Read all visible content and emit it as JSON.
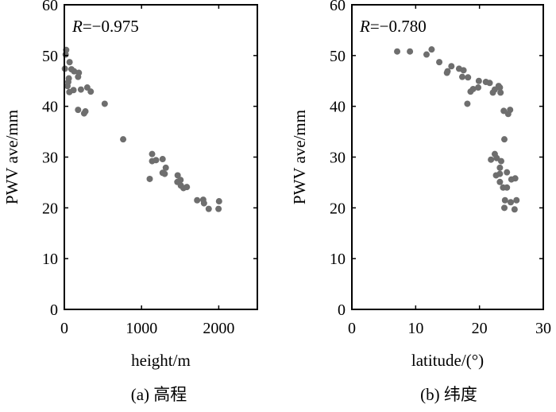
{
  "chart_data": [
    {
      "type": "scatter",
      "caption": "(a) 高程",
      "annotation_prefix": "R",
      "annotation_value": "=−0.975",
      "xlabel": "height/m",
      "ylabel": "PWV ave/mm",
      "xlim": [
        0,
        2500
      ],
      "ylim": [
        0,
        60
      ],
      "xticks": [
        0,
        1000,
        2000
      ],
      "xtick_labels": [
        "0",
        "1000",
        "2000"
      ],
      "yticks": [
        0,
        10,
        20,
        30,
        40,
        50,
        60
      ],
      "ytick_labels": [
        "0",
        "10",
        "20",
        "30",
        "40",
        "50",
        "60"
      ],
      "grid": false,
      "marker_color": "#6e6e6e",
      "points": [
        [
          24,
          51.1
        ],
        [
          17,
          50.2
        ],
        [
          7,
          47.4
        ],
        [
          68,
          48.7
        ],
        [
          92,
          47.3
        ],
        [
          126,
          46.9
        ],
        [
          188,
          46.6
        ],
        [
          178,
          45.8
        ],
        [
          58,
          45.5
        ],
        [
          51,
          44.8
        ],
        [
          41,
          44.0
        ],
        [
          65,
          42.8
        ],
        [
          119,
          43.2
        ],
        [
          215,
          43.3
        ],
        [
          297,
          43.7
        ],
        [
          342,
          42.9
        ],
        [
          523,
          40.5
        ],
        [
          178,
          39.3
        ],
        [
          256,
          38.6
        ],
        [
          273,
          39.0
        ],
        [
          762,
          33.5
        ],
        [
          1137,
          30.6
        ],
        [
          1137,
          29.2
        ],
        [
          1188,
          29.4
        ],
        [
          1273,
          29.6
        ],
        [
          1106,
          25.7
        ],
        [
          1314,
          27.9
        ],
        [
          1273,
          26.9
        ],
        [
          1300,
          26.7
        ],
        [
          1468,
          26.4
        ],
        [
          1505,
          25.5
        ],
        [
          1464,
          25.1
        ],
        [
          1509,
          24.4
        ],
        [
          1543,
          23.9
        ],
        [
          1587,
          24.1
        ],
        [
          1720,
          21.5
        ],
        [
          1799,
          21.6
        ],
        [
          1809,
          20.9
        ],
        [
          1870,
          19.8
        ],
        [
          1997,
          19.8
        ],
        [
          2004,
          21.3
        ]
      ]
    },
    {
      "type": "scatter",
      "caption": "(b) 纬度",
      "annotation_prefix": "R",
      "annotation_value": "=−0.780",
      "xlabel": "latitude/(°)",
      "ylabel": "PWV ave/mm",
      "xlim": [
        0,
        30
      ],
      "ylim": [
        0,
        60
      ],
      "xticks": [
        0,
        10,
        20,
        30
      ],
      "xtick_labels": [
        "0",
        "10",
        "20",
        "30"
      ],
      "yticks": [
        0,
        10,
        20,
        30,
        40,
        50,
        60
      ],
      "ytick_labels": [
        "0",
        "10",
        "20",
        "30",
        "40",
        "50",
        "60"
      ],
      "grid": false,
      "marker_color": "#6e6e6e",
      "points": [
        [
          7.1,
          50.8
        ],
        [
          9.1,
          50.8
        ],
        [
          11.7,
          50.2
        ],
        [
          12.5,
          51.2
        ],
        [
          13.7,
          48.7
        ],
        [
          14.9,
          46.6
        ],
        [
          15.0,
          46.9
        ],
        [
          15.6,
          47.9
        ],
        [
          16.8,
          47.4
        ],
        [
          17.5,
          47.1
        ],
        [
          17.3,
          45.8
        ],
        [
          18.2,
          45.7
        ],
        [
          18.6,
          42.9
        ],
        [
          19.0,
          43.4
        ],
        [
          19.8,
          43.7
        ],
        [
          19.9,
          45.0
        ],
        [
          21.0,
          44.8
        ],
        [
          21.6,
          44.6
        ],
        [
          18.1,
          40.5
        ],
        [
          22.1,
          42.7
        ],
        [
          22.4,
          43.3
        ],
        [
          23.0,
          44.0
        ],
        [
          23.2,
          43.7
        ],
        [
          23.3,
          42.7
        ],
        [
          23.8,
          39.1
        ],
        [
          24.8,
          39.3
        ],
        [
          24.5,
          38.5
        ],
        [
          23.9,
          33.5
        ],
        [
          22.4,
          30.6
        ],
        [
          21.8,
          29.5
        ],
        [
          22.7,
          29.8
        ],
        [
          23.4,
          29.2
        ],
        [
          23.2,
          27.9
        ],
        [
          22.6,
          26.4
        ],
        [
          23.2,
          26.7
        ],
        [
          24.3,
          27.0
        ],
        [
          23.2,
          25.1
        ],
        [
          25.0,
          25.6
        ],
        [
          25.6,
          25.8
        ],
        [
          23.7,
          24.0
        ],
        [
          24.3,
          24.0
        ],
        [
          24.0,
          21.5
        ],
        [
          24.9,
          21.1
        ],
        [
          25.8,
          21.5
        ],
        [
          23.9,
          20.0
        ],
        [
          25.5,
          19.7
        ]
      ]
    }
  ]
}
